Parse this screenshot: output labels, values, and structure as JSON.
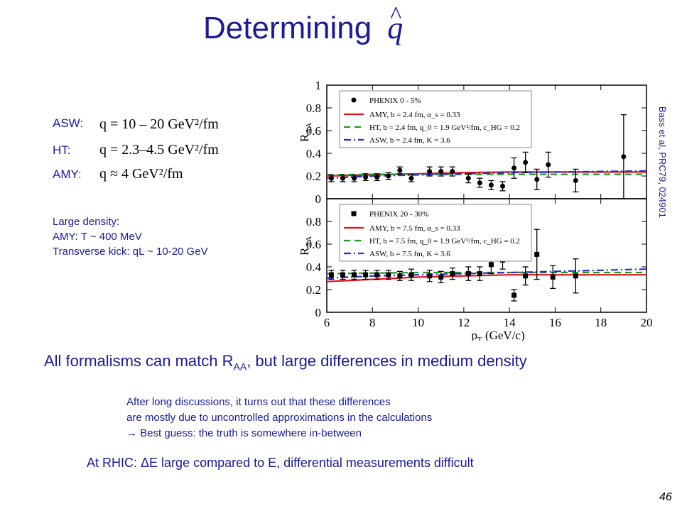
{
  "slide": {
    "title": "Determining",
    "title_symbol": "q",
    "formulas": [
      {
        "label": "ASW:",
        "expr": "q = 10 – 20 GeV²/fm"
      },
      {
        "label": "HT:",
        "expr": "q = 2.3–4.5 GeV²/fm"
      },
      {
        "label": "AMY:",
        "expr": "q ≈ 4 GeV²/fm"
      }
    ],
    "density_lines": [
      "Large density:",
      "AMY: T ~ 400 MeV",
      "Transverse kick: qL ~ 10-20 GeV"
    ],
    "reference": "Bass et al, PRC79, 024901",
    "conclusion_main": "All formalisms can match R",
    "conclusion_sub": "AA",
    "conclusion_rest": ", but large differences in medium density",
    "discussion_lines": [
      "After long discussions, it turns out that these differences",
      "are mostly due to uncontrolled approximations in the calculations",
      " Best guess: the truth is somewhere in-between"
    ],
    "arrow_symbol": "→",
    "rhic_prefix": "At RHIC: ",
    "rhic_delta": "Δ",
    "rhic_rest": "E large compared to E, differential measurements difficult",
    "page_number": "46"
  },
  "colors": {
    "accent": "#1a1a99",
    "amy": "#e8121a",
    "ht": "#1a9a1a",
    "asw": "#2a2ad0"
  },
  "chart_data": [
    {
      "type": "scatter",
      "panel": "top",
      "xlim": [
        6,
        20
      ],
      "ylim": [
        0,
        1
      ],
      "x_ticks": [
        6,
        8,
        10,
        12,
        14,
        16,
        18,
        20
      ],
      "y_ticks": [
        0,
        0.2,
        0.4,
        0.6,
        0.8,
        1
      ],
      "y_tick_labels": [
        "0",
        "0.2",
        "0.4",
        "0.6",
        "0.8",
        "1"
      ],
      "ylabel": "R",
      "ylabel_sub": "AA",
      "legend_position": "top-left",
      "data_series": {
        "name": "PHENIX 0 - 5%",
        "marker": "circle",
        "points": [
          {
            "x": 6.2,
            "y": 0.18,
            "err": 0.03
          },
          {
            "x": 6.7,
            "y": 0.18,
            "err": 0.03
          },
          {
            "x": 7.2,
            "y": 0.18,
            "err": 0.03
          },
          {
            "x": 7.7,
            "y": 0.19,
            "err": 0.03
          },
          {
            "x": 8.2,
            "y": 0.19,
            "err": 0.03
          },
          {
            "x": 8.7,
            "y": 0.2,
            "err": 0.03
          },
          {
            "x": 9.2,
            "y": 0.25,
            "err": 0.03
          },
          {
            "x": 9.7,
            "y": 0.18,
            "err": 0.03
          },
          {
            "x": 10.5,
            "y": 0.24,
            "err": 0.04
          },
          {
            "x": 11.0,
            "y": 0.24,
            "err": 0.04
          },
          {
            "x": 11.5,
            "y": 0.24,
            "err": 0.04
          },
          {
            "x": 12.2,
            "y": 0.18,
            "err": 0.04
          },
          {
            "x": 12.7,
            "y": 0.14,
            "err": 0.04
          },
          {
            "x": 13.2,
            "y": 0.12,
            "err": 0.04
          },
          {
            "x": 13.7,
            "y": 0.11,
            "err": 0.04
          },
          {
            "x": 14.2,
            "y": 0.27,
            "err": 0.09
          },
          {
            "x": 14.7,
            "y": 0.32,
            "err": 0.09
          },
          {
            "x": 15.2,
            "y": 0.17,
            "err": 0.09
          },
          {
            "x": 15.7,
            "y": 0.3,
            "err": 0.11
          },
          {
            "x": 16.9,
            "y": 0.16,
            "err": 0.1
          },
          {
            "x": 19.0,
            "y": 0.37,
            "err": 0.37
          }
        ]
      },
      "curves": [
        {
          "name": "AMY, b = 2.4 fm, α_s = 0.33",
          "style": "solid",
          "x": [
            6,
            8,
            10,
            12,
            14,
            16,
            18,
            20
          ],
          "y": [
            0.2,
            0.21,
            0.22,
            0.23,
            0.235,
            0.235,
            0.235,
            0.235
          ]
        },
        {
          "name": "HT, b = 2.4 fm, q_0 = 1.9 GeV²/fm, c_HG = 0.2",
          "style": "dash",
          "x": [
            6,
            8,
            10,
            12,
            14,
            16,
            18,
            20
          ],
          "y": [
            0.21,
            0.215,
            0.215,
            0.215,
            0.215,
            0.215,
            0.215,
            0.215
          ]
        },
        {
          "name": "ASW, b = 2.4 fm, K = 3.6",
          "style": "dashdot",
          "x": [
            6,
            8,
            10,
            12,
            14,
            16,
            18,
            20
          ],
          "y": [
            0.18,
            0.2,
            0.21,
            0.22,
            0.23,
            0.235,
            0.24,
            0.245
          ]
        }
      ]
    },
    {
      "type": "scatter",
      "panel": "bottom",
      "xlim": [
        6,
        20
      ],
      "ylim": [
        0,
        1
      ],
      "x_ticks": [
        6,
        8,
        10,
        12,
        14,
        16,
        18,
        20
      ],
      "x_tick_labels": [
        "6",
        "8",
        "10",
        "12",
        "14",
        "16",
        "18",
        "20"
      ],
      "y_ticks": [
        0,
        0.2,
        0.4,
        0.6,
        0.8
      ],
      "y_tick_labels": [
        "0",
        "0.2",
        "0.4",
        "0.6",
        "0.8"
      ],
      "ylabel": "R",
      "ylabel_sub": "AA",
      "xlabel": "p",
      "xlabel_sub": "T",
      "xlabel_rest": " (GeV/c)",
      "legend_position": "top-left",
      "data_series": {
        "name": "PHENIX 20 - 30%",
        "marker": "square",
        "points": [
          {
            "x": 6.2,
            "y": 0.33,
            "err": 0.04
          },
          {
            "x": 6.7,
            "y": 0.33,
            "err": 0.04
          },
          {
            "x": 7.2,
            "y": 0.33,
            "err": 0.04
          },
          {
            "x": 7.7,
            "y": 0.33,
            "err": 0.04
          },
          {
            "x": 8.2,
            "y": 0.33,
            "err": 0.04
          },
          {
            "x": 8.7,
            "y": 0.33,
            "err": 0.04
          },
          {
            "x": 9.2,
            "y": 0.32,
            "err": 0.04
          },
          {
            "x": 9.7,
            "y": 0.33,
            "err": 0.05
          },
          {
            "x": 10.5,
            "y": 0.32,
            "err": 0.05
          },
          {
            "x": 11.0,
            "y": 0.31,
            "err": 0.05
          },
          {
            "x": 11.5,
            "y": 0.34,
            "err": 0.05
          },
          {
            "x": 12.2,
            "y": 0.34,
            "err": 0.06
          },
          {
            "x": 12.7,
            "y": 0.34,
            "err": 0.06
          },
          {
            "x": 13.2,
            "y": 0.42,
            "err": 0.08
          },
          {
            "x": 13.7,
            "y": 0.46,
            "err": 0.08
          },
          {
            "x": 14.2,
            "y": 0.15,
            "err": 0.05
          },
          {
            "x": 14.7,
            "y": 0.32,
            "err": 0.08
          },
          {
            "x": 15.2,
            "y": 0.51,
            "err": 0.22
          },
          {
            "x": 15.9,
            "y": 0.31,
            "err": 0.1
          },
          {
            "x": 16.9,
            "y": 0.32,
            "err": 0.15
          }
        ]
      },
      "curves": [
        {
          "name": "AMY, b = 7.5 fm, α_s = 0.33",
          "style": "solid",
          "x": [
            6,
            8,
            10,
            12,
            14,
            16,
            18,
            20
          ],
          "y": [
            0.27,
            0.29,
            0.31,
            0.32,
            0.33,
            0.33,
            0.33,
            0.33
          ]
        },
        {
          "name": "HT, b = 7.5 fm, q_0 = 1.9 GeV²/fm, c_HG = 0.2",
          "style": "dash",
          "x": [
            6,
            8,
            10,
            12,
            14,
            16,
            18,
            20
          ],
          "y": [
            0.34,
            0.345,
            0.35,
            0.35,
            0.35,
            0.35,
            0.35,
            0.35
          ]
        },
        {
          "name": "ASW, b = 7.5 fm, K = 3.6",
          "style": "dashdot",
          "x": [
            6,
            8,
            10,
            12,
            14,
            16,
            18,
            20
          ],
          "y": [
            0.3,
            0.32,
            0.33,
            0.34,
            0.35,
            0.36,
            0.37,
            0.38
          ]
        }
      ]
    }
  ]
}
